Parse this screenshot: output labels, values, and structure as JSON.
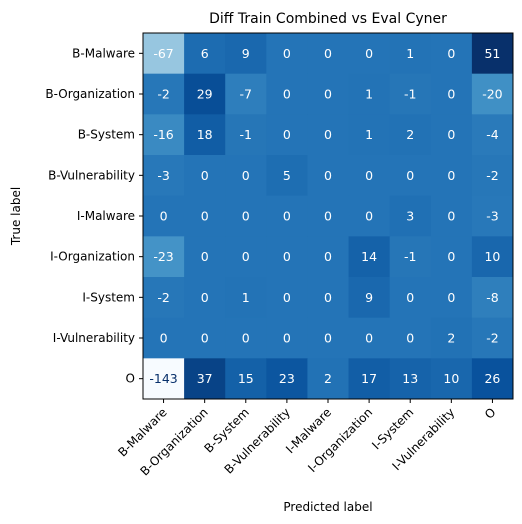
{
  "chart_data": {
    "type": "heatmap",
    "title": "Diff Train Combined vs Eval Cyner",
    "xlabel": "Predicted label",
    "ylabel": "True label",
    "x_categories": [
      "B-Malware",
      "B-Organization",
      "B-System",
      "B-Vulnerability",
      "I-Malware",
      "I-Organization",
      "I-System",
      "I-Vulnerability",
      "O"
    ],
    "y_categories": [
      "B-Malware",
      "B-Organization",
      "B-System",
      "B-Vulnerability",
      "I-Malware",
      "I-Organization",
      "I-System",
      "I-Vulnerability",
      "O"
    ],
    "values": [
      [
        -67,
        6,
        9,
        0,
        0,
        0,
        1,
        0,
        51
      ],
      [
        -2,
        29,
        -7,
        0,
        0,
        1,
        -1,
        0,
        -20
      ],
      [
        -16,
        18,
        -1,
        0,
        0,
        1,
        2,
        0,
        -4
      ],
      [
        -3,
        0,
        0,
        5,
        0,
        0,
        0,
        0,
        -2
      ],
      [
        0,
        0,
        0,
        0,
        0,
        0,
        3,
        0,
        -3
      ],
      [
        -23,
        0,
        0,
        0,
        0,
        14,
        -1,
        0,
        10
      ],
      [
        -2,
        0,
        1,
        0,
        0,
        9,
        0,
        0,
        -8
      ],
      [
        0,
        0,
        0,
        0,
        0,
        0,
        0,
        2,
        -2
      ],
      [
        -143,
        37,
        15,
        23,
        2,
        17,
        13,
        10,
        26
      ]
    ],
    "colormap": "Blues",
    "vmin": -143,
    "vmax": 51,
    "grid": false,
    "legend": "none"
  }
}
